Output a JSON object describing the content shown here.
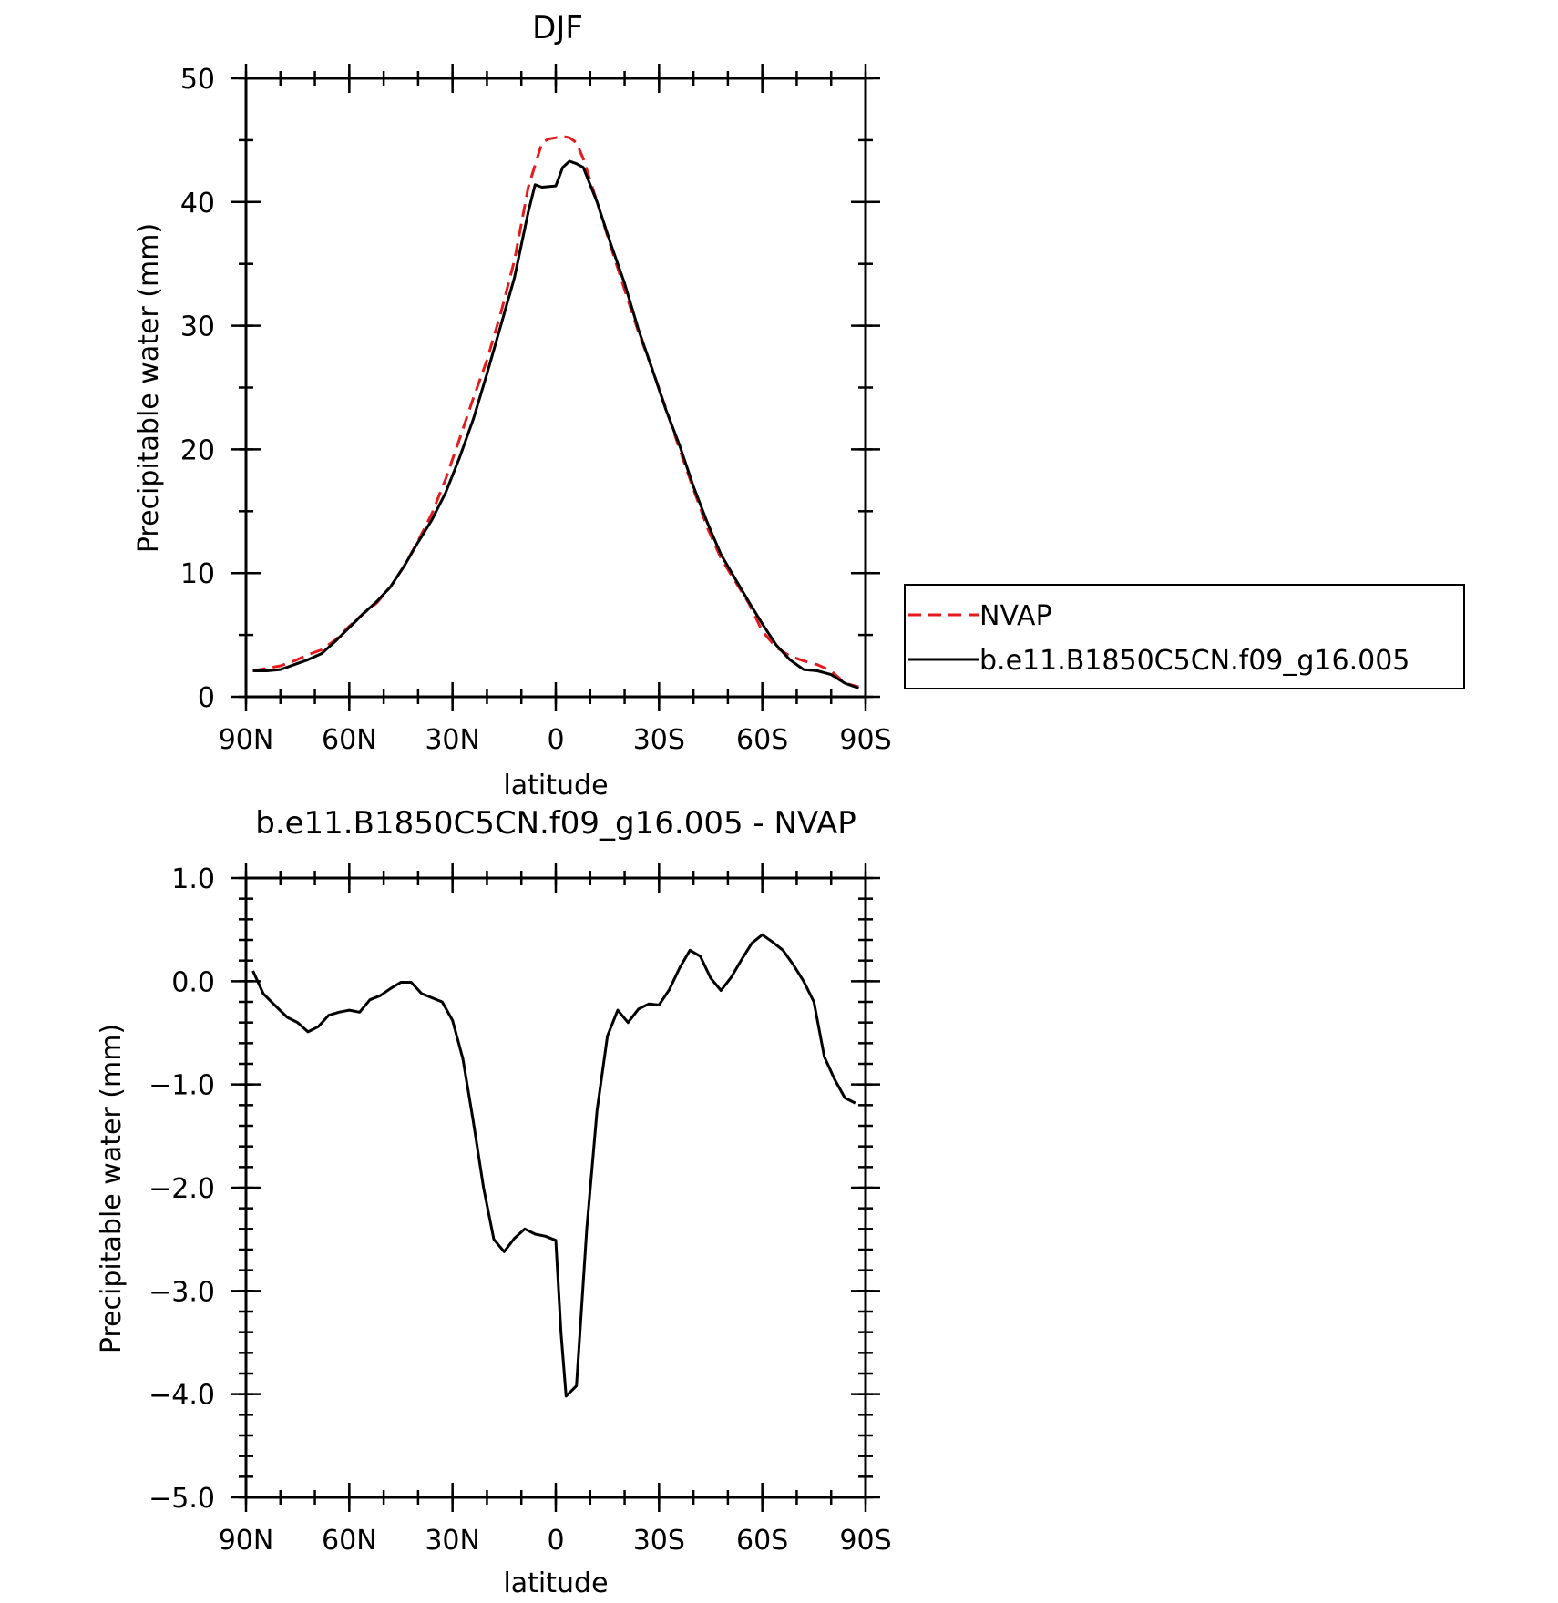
{
  "chart_data": [
    {
      "type": "line",
      "title": "DJF",
      "xlabel": "latitude",
      "ylabel": "Precipitable water (mm)",
      "xlim": [
        90,
        -90
      ],
      "ylim": [
        0,
        50
      ],
      "x_ticks": [
        {
          "value": 90,
          "label": "90N"
        },
        {
          "value": 60,
          "label": "60N"
        },
        {
          "value": 30,
          "label": "30N"
        },
        {
          "value": 0,
          "label": "0"
        },
        {
          "value": -30,
          "label": "30S"
        },
        {
          "value": -60,
          "label": "60S"
        },
        {
          "value": -90,
          "label": "90S"
        }
      ],
      "y_ticks": [
        {
          "value": 0,
          "label": "0"
        },
        {
          "value": 10,
          "label": "10"
        },
        {
          "value": 20,
          "label": "20"
        },
        {
          "value": 30,
          "label": "30"
        },
        {
          "value": 40,
          "label": "40"
        },
        {
          "value": 50,
          "label": "50"
        }
      ],
      "legend": {
        "placement": "right"
      },
      "series": [
        {
          "name": "NVAP",
          "color": "#e41a1c",
          "dash": "dashed",
          "x": [
            88,
            84,
            80,
            76,
            72,
            68,
            64,
            60,
            56,
            52,
            48,
            44,
            40,
            36,
            32,
            28,
            24,
            20,
            16,
            12,
            8,
            4,
            2,
            0,
            -2,
            -4,
            -6,
            -8,
            -12,
            -16,
            -20,
            -24,
            -28,
            -32,
            -36,
            -40,
            -44,
            -48,
            -52,
            -56,
            -60,
            -64,
            -68,
            -72,
            -76,
            -80,
            -84,
            -88
          ],
          "y": [
            2.1,
            2.3,
            2.5,
            2.9,
            3.4,
            3.8,
            4.6,
            5.7,
            6.7,
            7.6,
            8.9,
            10.6,
            12.6,
            14.8,
            17.6,
            20.8,
            24.1,
            27.2,
            31.0,
            35.3,
            41.2,
            44.8,
            45.1,
            45.2,
            45.3,
            45.2,
            44.8,
            43.5,
            40.0,
            36.4,
            32.9,
            29.5,
            26.5,
            23.3,
            20.0,
            16.8,
            13.7,
            11.2,
            9.4,
            7.6,
            5.3,
            4.0,
            3.3,
            2.9,
            2.6,
            2.1,
            1.1,
            0.8
          ]
        },
        {
          "name": "b.e11.B1850C5CN.f09_g16.005",
          "color": "#000000",
          "dash": "solid",
          "x": [
            88,
            84,
            80,
            76,
            72,
            68,
            64,
            60,
            56,
            52,
            48,
            44,
            40,
            36,
            32,
            28,
            24,
            20,
            16,
            12,
            8,
            6,
            4,
            0,
            -2,
            -4,
            -6,
            -8,
            -12,
            -16,
            -20,
            -24,
            -28,
            -32,
            -36,
            -40,
            -44,
            -48,
            -52,
            -56,
            -60,
            -64,
            -68,
            -72,
            -76,
            -80,
            -84,
            -88
          ],
          "y": [
            2.1,
            2.1,
            2.2,
            2.6,
            3.0,
            3.5,
            4.5,
            5.6,
            6.7,
            7.7,
            8.9,
            10.6,
            12.5,
            14.3,
            16.5,
            19.3,
            22.4,
            26.1,
            30.0,
            33.9,
            39.2,
            41.4,
            41.2,
            41.3,
            42.8,
            43.3,
            43.1,
            42.8,
            40.0,
            36.6,
            33.4,
            29.7,
            26.5,
            23.2,
            20.3,
            17.0,
            14.1,
            11.5,
            9.6,
            7.7,
            5.9,
            4.2,
            3.0,
            2.2,
            2.1,
            1.8,
            1.1,
            0.7
          ]
        }
      ]
    },
    {
      "type": "line",
      "title": "b.e11.B1850C5CN.f09_g16.005 - NVAP",
      "xlabel": "latitude",
      "ylabel": "Precipitable water (mm)",
      "xlim": [
        90,
        -90
      ],
      "ylim": [
        -5.0,
        1.0
      ],
      "x_ticks": [
        {
          "value": 90,
          "label": "90N"
        },
        {
          "value": 60,
          "label": "60N"
        },
        {
          "value": 30,
          "label": "30N"
        },
        {
          "value": 0,
          "label": "0"
        },
        {
          "value": -30,
          "label": "30S"
        },
        {
          "value": -60,
          "label": "60S"
        },
        {
          "value": -90,
          "label": "90S"
        }
      ],
      "y_ticks": [
        {
          "value": 1.0,
          "label": "1.0"
        },
        {
          "value": 0.0,
          "label": "0.0"
        },
        {
          "value": -1.0,
          "label": "−1.0"
        },
        {
          "value": -2.0,
          "label": "−2.0"
        },
        {
          "value": -3.0,
          "label": "−3.0"
        },
        {
          "value": -4.0,
          "label": "−4.0"
        },
        {
          "value": -5.0,
          "label": "−5.0"
        }
      ],
      "series": [
        {
          "color": "#000000",
          "dash": "solid",
          "x": [
            88,
            85,
            82,
            78,
            75,
            72,
            69,
            66,
            63,
            60,
            57,
            54,
            51,
            48,
            45,
            42,
            39,
            36,
            33,
            30,
            27,
            24,
            21,
            18,
            15,
            12,
            9,
            6,
            3,
            0,
            -1.5,
            -3,
            -6,
            -9,
            -12,
            -15,
            -18,
            -21,
            -24,
            -27,
            -30,
            -33,
            -36,
            -39,
            -42,
            -45,
            -48,
            -51,
            -54,
            -57,
            -60,
            -63,
            -66,
            -69,
            -72,
            -75,
            -78,
            -81,
            -84,
            -87
          ],
          "y": [
            0.1,
            -0.12,
            -0.22,
            -0.35,
            -0.4,
            -0.49,
            -0.44,
            -0.33,
            -0.3,
            -0.28,
            -0.3,
            -0.18,
            -0.14,
            -0.07,
            -0.01,
            -0.01,
            -0.12,
            -0.16,
            -0.2,
            -0.38,
            -0.75,
            -1.35,
            -2.0,
            -2.5,
            -2.62,
            -2.49,
            -2.4,
            -2.45,
            -2.47,
            -2.51,
            -3.4,
            -4.02,
            -3.92,
            -2.4,
            -1.25,
            -0.53,
            -0.28,
            -0.4,
            -0.27,
            -0.22,
            -0.23,
            -0.08,
            0.13,
            0.3,
            0.24,
            0.03,
            -0.09,
            0.04,
            0.21,
            0.37,
            0.45,
            0.38,
            0.3,
            0.16,
            0.0,
            -0.2,
            -0.73,
            -0.95,
            -1.13,
            -1.18
          ]
        }
      ]
    }
  ]
}
